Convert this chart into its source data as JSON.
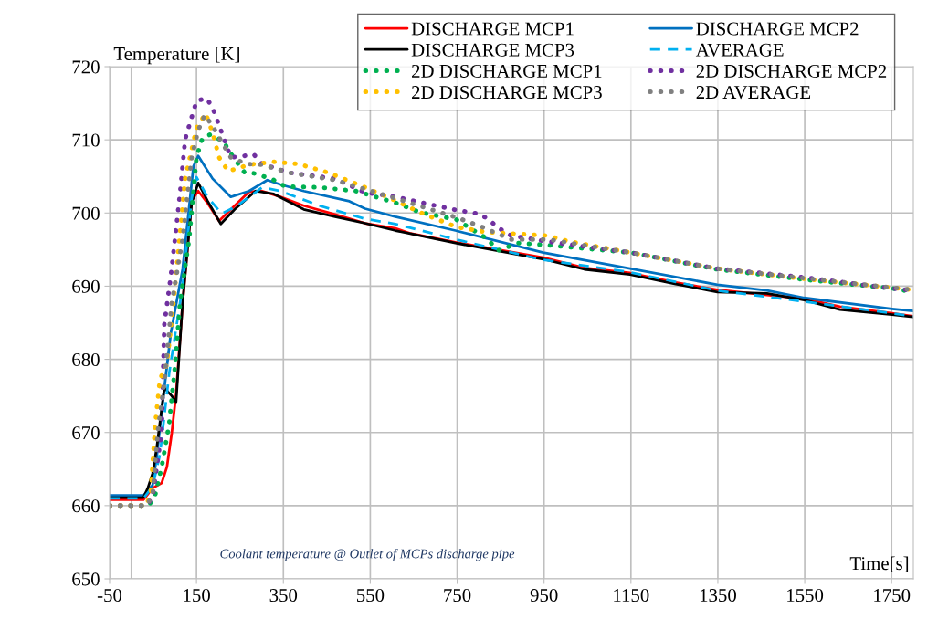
{
  "chart_data": {
    "type": "line",
    "ylabel": "Temperature [K]",
    "xlabel": "Time[s]",
    "annotations": [
      "Coolant temperature @ Outlet of MCPs discharge pipe"
    ],
    "xlim": [
      -50,
      1800
    ],
    "ylim": [
      650,
      720
    ],
    "xticks": [
      -50,
      150,
      350,
      550,
      750,
      950,
      1150,
      1350,
      1550,
      1750
    ],
    "yticks": [
      650,
      660,
      670,
      680,
      690,
      700,
      710,
      720
    ],
    "grid": true,
    "legend": "top right",
    "marker": "none",
    "ref_lines": [
      {
        "axis": "x",
        "value": 0,
        "color": "#bfbfbf"
      }
    ],
    "series": [
      {
        "name": "DISCHARGE MCP1",
        "color": "#ff0000",
        "line_style": "solid",
        "x": [
          -50,
          28,
          49,
          70,
          82,
          93,
          103,
          118,
          139,
          154,
          175,
          202,
          238,
          271,
          301,
          343,
          397,
          469,
          538,
          608,
          643,
          746,
          948,
          1043,
          1148,
          1253,
          1349,
          1463,
          1549,
          1631,
          1751,
          1799
        ],
        "values": [
          660.8,
          660.8,
          662.4,
          663.1,
          665.3,
          669.9,
          675.2,
          687.6,
          701.7,
          703.0,
          701.4,
          698.9,
          701.0,
          702.9,
          703.0,
          702.2,
          701.0,
          699.8,
          698.6,
          697.9,
          697.2,
          696.0,
          693.9,
          692.5,
          691.8,
          690.5,
          689.5,
          688.8,
          688.3,
          687.2,
          686.3,
          685.9
        ]
      },
      {
        "name": "DISCHARGE MCP2",
        "color": "#0070c0",
        "line_style": "solid",
        "x": [
          -50,
          28,
          49,
          59,
          72,
          91,
          118,
          143,
          154,
          187,
          229,
          271,
          313,
          343,
          397,
          502,
          538,
          608,
          746,
          948,
          1148,
          1349,
          1463,
          1549,
          1751,
          1799
        ],
        "values": [
          661.4,
          661.4,
          662.8,
          666.9,
          674.0,
          683.6,
          692.3,
          706.4,
          707.8,
          704.7,
          702.2,
          703.0,
          704.5,
          703.9,
          703.0,
          701.6,
          700.6,
          699.5,
          697.6,
          694.6,
          692.4,
          690.2,
          689.4,
          688.4,
          686.9,
          686.6
        ]
      },
      {
        "name": "DISCHARGE MCP3",
        "color": "#000000",
        "line_style": "solid",
        "x": [
          -50,
          28,
          38,
          49,
          59,
          76,
          93,
          103,
          118,
          139,
          154,
          175,
          206,
          238,
          286,
          328,
          397,
          469,
          538,
          608,
          746,
          948,
          1043,
          1148,
          1253,
          1349,
          1463,
          1549,
          1631,
          1751,
          1799
        ],
        "values": [
          661.1,
          661.1,
          662.4,
          664.4,
          668.1,
          676.1,
          675.0,
          674.2,
          687.7,
          701.4,
          704.1,
          701.7,
          698.5,
          700.5,
          703.0,
          702.6,
          700.5,
          699.5,
          698.6,
          697.6,
          695.9,
          693.7,
          692.3,
          691.6,
          690.3,
          689.2,
          689.0,
          688.1,
          686.8,
          686.1,
          685.8
        ]
      },
      {
        "name": "AVERAGE",
        "color": "#00b0f0",
        "line_style": "dashed",
        "x": [
          -50,
          28,
          49,
          66,
          87,
          118,
          139,
          150,
          175,
          208,
          244,
          301,
          343,
          433,
          538,
          608,
          746,
          948,
          1148,
          1349,
          1549,
          1799
        ],
        "values": [
          661.0,
          661.0,
          662.6,
          667.0,
          678.0,
          690.0,
          702.0,
          704.9,
          702.2,
          699.9,
          701.0,
          703.5,
          703.0,
          701.0,
          699.2,
          698.5,
          696.4,
          693.6,
          691.9,
          689.4,
          687.9,
          685.9
        ]
      },
      {
        "name": "2D DISCHARGE MCP1",
        "color": "#00b050",
        "line_style": "dotted",
        "x": [
          -50,
          40,
          55,
          70,
          87,
          101,
          112,
          133,
          150,
          164,
          181,
          213,
          223,
          261,
          286,
          328,
          355,
          433,
          517,
          608,
          664,
          748,
          816,
          845,
          891,
          958,
          1148,
          1349,
          1549,
          1751,
          1799
        ],
        "values": [
          660.0,
          660.0,
          661.5,
          665.3,
          671.1,
          679.3,
          687.7,
          696.4,
          707.6,
          710.3,
          710.7,
          709.8,
          708.6,
          705.5,
          705.4,
          704.5,
          703.6,
          703.5,
          703.0,
          701.4,
          700.1,
          699.1,
          696.6,
          694.9,
          695.9,
          695.6,
          694.6,
          692.3,
          690.9,
          689.7,
          689.2
        ]
      },
      {
        "name": "2D DISCHARGE MCP2",
        "color": "#7030a0",
        "line_style": "dotted",
        "x": [
          -50,
          35,
          49,
          70,
          76,
          91,
          112,
          124,
          150,
          173,
          187,
          208,
          229,
          259,
          282,
          301,
          364,
          469,
          538,
          608,
          748,
          799,
          824,
          841,
          874,
          958,
          1148,
          1349,
          1549,
          1751,
          1799
        ],
        "values": [
          660.0,
          660.0,
          661.2,
          670.2,
          684.8,
          691.4,
          702.6,
          710.1,
          715.3,
          715.7,
          714.4,
          711.0,
          707.6,
          707.8,
          708.0,
          706.7,
          705.5,
          704.7,
          702.8,
          702.2,
          700.4,
          699.9,
          699.1,
          698.1,
          696.9,
          696.1,
          694.6,
          692.4,
          691.2,
          689.7,
          689.4
        ]
      },
      {
        "name": "2D DISCHARGE MCP3",
        "color": "#ffc000",
        "line_style": "dotted",
        "x": [
          -50,
          35,
          45,
          55,
          66,
          82,
          97,
          124,
          150,
          171,
          187,
          202,
          223,
          271,
          328,
          385,
          454,
          538,
          608,
          664,
          748,
          816,
          958,
          1009,
          1148,
          1349,
          1549,
          1751,
          1799
        ],
        "values": [
          660.0,
          660.0,
          662.0,
          671.1,
          677.3,
          679.3,
          687.7,
          704.7,
          711.6,
          713.6,
          711.0,
          707.6,
          705.7,
          706.6,
          707.0,
          706.7,
          705.5,
          703.5,
          701.7,
          700.1,
          698.1,
          697.4,
          696.9,
          696.1,
          694.6,
          692.4,
          691.0,
          689.8,
          689.5
        ]
      },
      {
        "name": "2D AVERAGE",
        "color": "#808080",
        "line_style": "dotted",
        "x": [
          -50,
          35,
          49,
          61,
          76,
          93,
          118,
          139,
          154,
          169,
          187,
          208,
          229,
          265,
          301,
          364,
          469,
          608,
          748,
          807,
          874,
          958,
          1148,
          1349,
          1549,
          1751,
          1799
        ],
        "values": [
          660.0,
          660.0,
          661.5,
          670.2,
          676.8,
          687.7,
          696.4,
          707.6,
          711.3,
          713.4,
          711.9,
          709.7,
          707.6,
          706.7,
          706.6,
          705.5,
          704.5,
          702.0,
          699.4,
          698.1,
          696.4,
          696.4,
          694.6,
          692.4,
          691.1,
          689.8,
          689.5
        ]
      }
    ]
  }
}
